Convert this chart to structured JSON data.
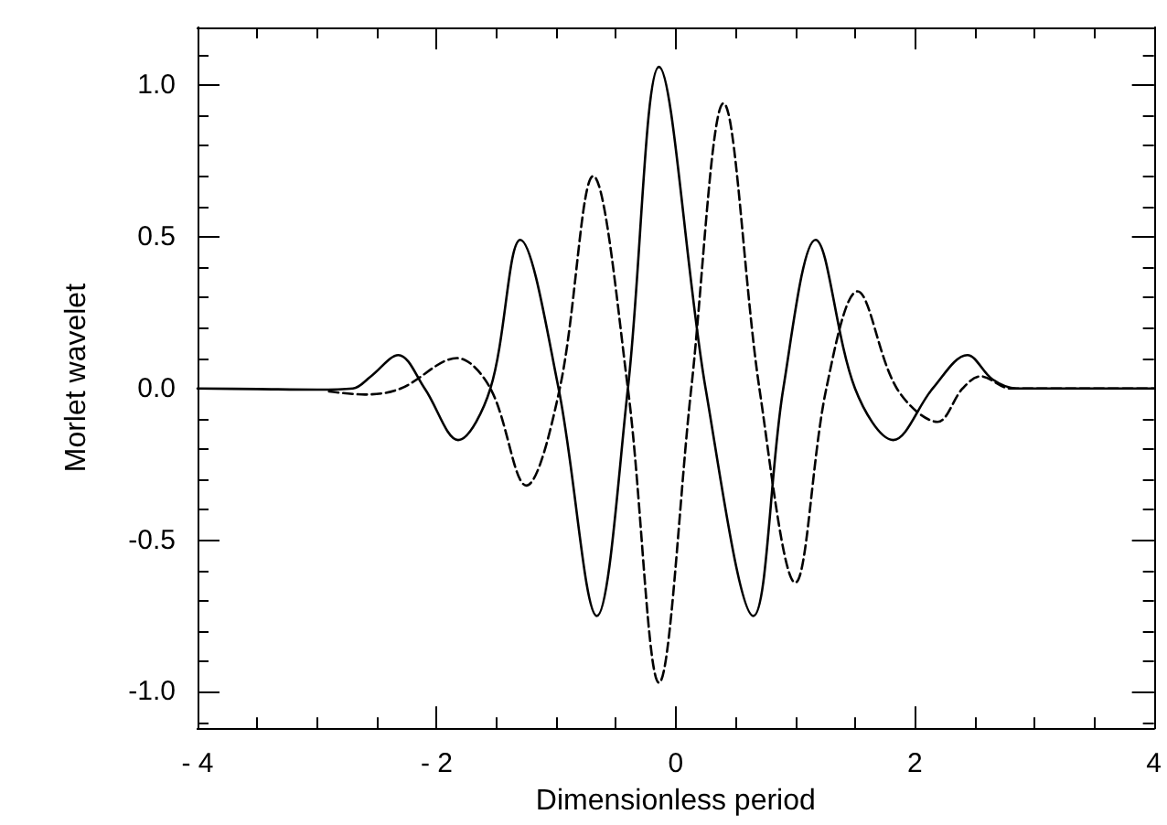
{
  "chart_data": {
    "type": "line",
    "xlabel": "Dimensionless period",
    "ylabel": "Morlet wavelet",
    "xlim": [
      -4,
      4
    ],
    "ylim": [
      -1.12,
      1.19
    ],
    "xticks": [
      {
        "value": -4,
        "label": "- 4"
      },
      {
        "value": -2,
        "label": "- 2"
      },
      0,
      2,
      4
    ],
    "yticks": [
      {
        "value": -1,
        "label": "-1.0"
      },
      -0.5,
      {
        "value": 0,
        "label": "0.0"
      },
      0.5,
      {
        "value": 1,
        "label": "1.0"
      }
    ],
    "grid": false,
    "marker": "none",
    "series": [
      {
        "color": "#000000",
        "line_style": "solid",
        "x": [
          -4,
          -3.5,
          -3,
          -2.7,
          -2.55,
          -2.32,
          -2.1,
          -1.82,
          -1.55,
          -1.3,
          -0.98,
          -0.66,
          -0.4,
          -0.14,
          0.25,
          0.65,
          0.9,
          1.17,
          1.5,
          1.82,
          2.15,
          2.44,
          2.65,
          2.85,
          3.2,
          3.6,
          4
        ],
        "values": [
          0,
          -0.002,
          -0.004,
          0,
          0.04,
          0.11,
          0,
          -0.17,
          0,
          0.49,
          0,
          -0.75,
          0,
          1.06,
          0,
          -0.75,
          0,
          0.49,
          0,
          -0.17,
          0,
          0.11,
          0.03,
          0,
          0,
          0,
          0
        ]
      },
      {
        "color": "#000000",
        "line_style": "dashed",
        "x": [
          -2.9,
          -2.6,
          -2.3,
          -1.83,
          -1.55,
          -1.25,
          -0.97,
          -0.69,
          -0.4,
          -0.14,
          0.13,
          0.4,
          0.7,
          1.0,
          1.26,
          1.52,
          1.85,
          2.19,
          2.4,
          2.55,
          2.8,
          3.2,
          3.6,
          4
        ],
        "values": [
          -0.01,
          -0.02,
          0,
          0.1,
          0,
          -0.32,
          0,
          0.7,
          0,
          -0.97,
          0,
          0.94,
          0,
          -0.64,
          0,
          0.32,
          0,
          -0.11,
          0,
          0.04,
          0,
          0,
          0,
          0
        ]
      }
    ]
  }
}
